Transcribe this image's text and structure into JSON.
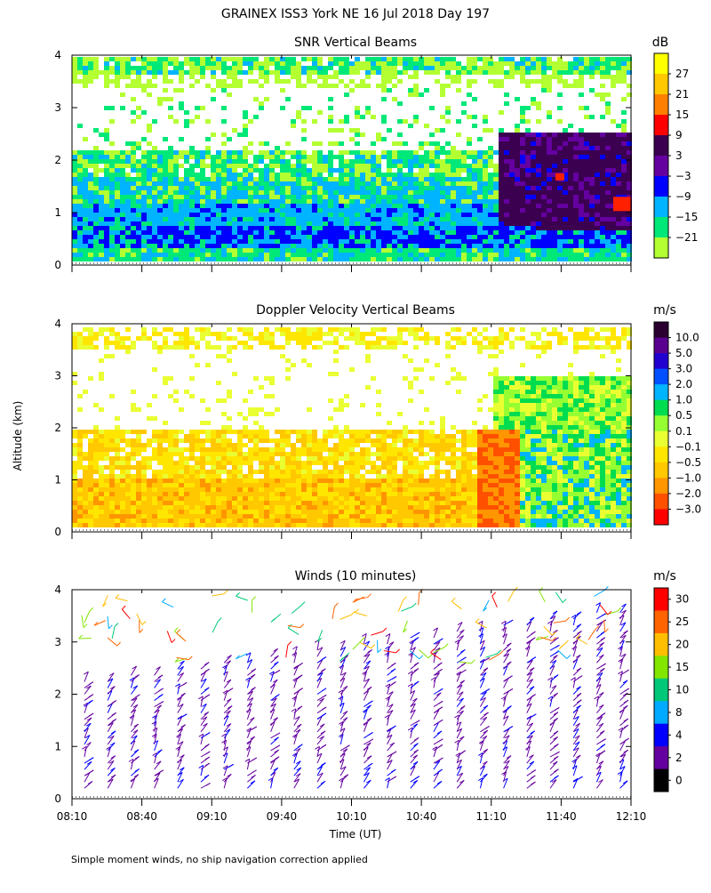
{
  "figure_title": "GRAINEX ISS3 York NE  16 Jul 2018 Day 197",
  "footnote": "Simple moment winds, no ship navigation correction applied",
  "shared_ylabel": "Altitude (km)",
  "chart_data": [
    {
      "type": "heatmap",
      "title": "SNR Vertical Beams",
      "ylabel": "Altitude (km)",
      "ylim": [
        0,
        4
      ],
      "yticks": [
        "0",
        "1",
        "2",
        "3",
        "4"
      ],
      "colorbar": {
        "unit": "dB",
        "labels": [
          "27",
          "21",
          "15",
          "9",
          "3",
          "−3",
          "−9",
          "−15",
          "−21"
        ],
        "colors": [
          "#ffff00",
          "#ffc800",
          "#ff8000",
          "#ff0000",
          "#3c0050",
          "#6400a0",
          "#0000ff",
          "#00b4ff",
          "#00e878",
          "#b4ff32"
        ]
      }
    },
    {
      "type": "heatmap",
      "title": "Doppler Velocity Vertical Beams",
      "ylabel": "Altitude (km)",
      "ylim": [
        0,
        4
      ],
      "yticks": [
        "0",
        "1",
        "2",
        "3",
        "4"
      ],
      "colorbar": {
        "unit": "m/s",
        "labels": [
          "10.0",
          "5.0",
          "3.0",
          "2.0",
          "1.0",
          "0.5",
          "0.1",
          "−0.1",
          "−0.5",
          "−1.0",
          "−2.0",
          "−3.0"
        ],
        "colors": [
          "#2a0030",
          "#5a0090",
          "#2200d0",
          "#0050ff",
          "#00b4ff",
          "#00dc50",
          "#96ff32",
          "#eaff32",
          "#ffe600",
          "#ffc800",
          "#ff9600",
          "#ff5000",
          "#ff0000"
        ]
      }
    },
    {
      "type": "wind_barbs",
      "title": "Winds (10 minutes)",
      "ylabel": "Altitude (km)",
      "xlabel": "Time (UT)",
      "ylim": [
        0,
        4
      ],
      "yticks": [
        "0",
        "1",
        "2",
        "3",
        "4"
      ],
      "xticks": [
        "08:10",
        "08:40",
        "09:10",
        "09:40",
        "10:10",
        "10:40",
        "11:10",
        "11:40",
        "12:10"
      ],
      "colorbar": {
        "unit": "m/s",
        "labels": [
          "30",
          "25",
          "20",
          "15",
          "10",
          "8",
          "4",
          "2",
          "0"
        ],
        "colors": [
          "#ff0000",
          "#ff6400",
          "#ffbe00",
          "#82e600",
          "#00c878",
          "#00aaff",
          "#0000ff",
          "#6400a0",
          "#000000"
        ]
      }
    }
  ]
}
